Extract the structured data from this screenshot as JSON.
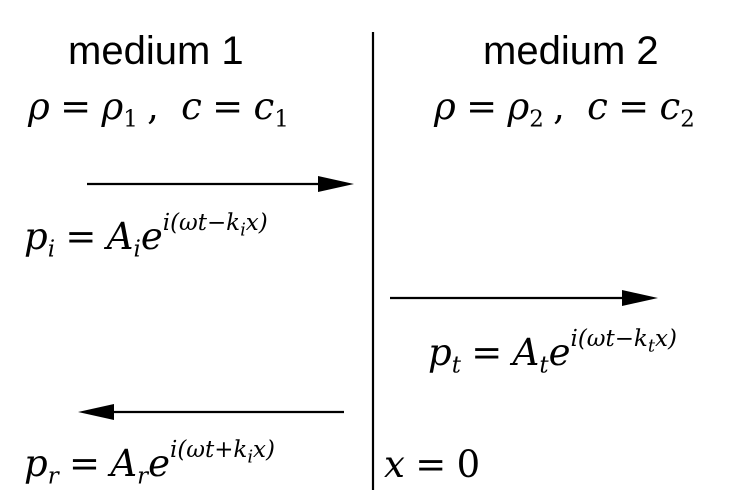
{
  "media": {
    "left": {
      "title": "medium 1",
      "rho_symbol": "ρ",
      "rho_sub": "1",
      "c_symbol": "c",
      "c_sub": "1"
    },
    "right": {
      "title": "medium 2",
      "rho_symbol": "ρ",
      "rho_sub": "2",
      "c_symbol": "c",
      "c_sub": "2"
    }
  },
  "waves": {
    "incident": {
      "symbol": "p",
      "sub": "i",
      "amp": "A",
      "amp_sub": "i",
      "base": "e",
      "exponent": "i(ωt−k",
      "exp_sub": "i",
      "exp_end": "x)",
      "direction": "right"
    },
    "transmitted": {
      "symbol": "p",
      "sub": "t",
      "amp": "A",
      "amp_sub": "t",
      "base": "e",
      "exponent": "i(ωt−k",
      "exp_sub": "t",
      "exp_end": "x)",
      "direction": "right"
    },
    "reflected": {
      "symbol": "p",
      "sub": "r",
      "amp": "A",
      "amp_sub": "r",
      "base": "e",
      "exponent": "i(ωt+k",
      "exp_sub": "i",
      "exp_end": "x)",
      "direction": "left"
    }
  },
  "interface": {
    "var": "x",
    "value": "0"
  },
  "symbols": {
    "equals": "=",
    "comma": ","
  },
  "colors": {
    "ink": "#000000",
    "background": "#ffffff"
  }
}
